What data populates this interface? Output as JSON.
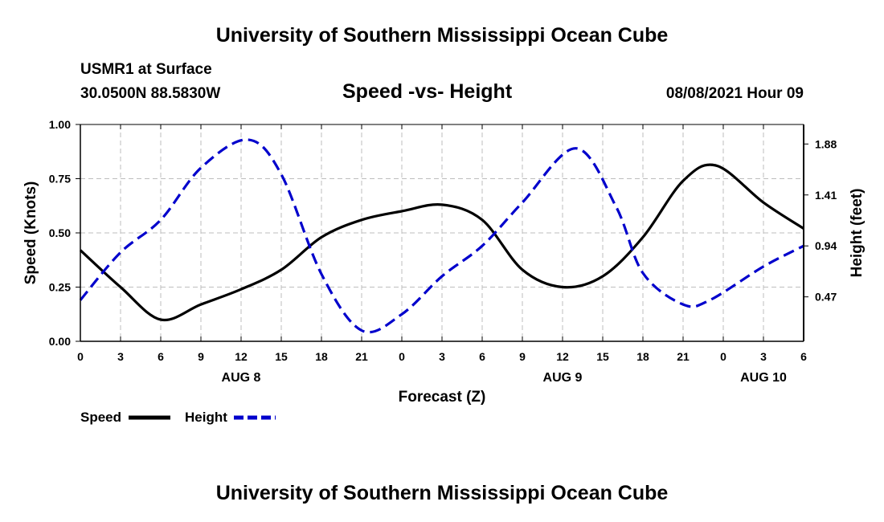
{
  "header": {
    "title": "University of Southern Mississippi Ocean Cube",
    "station": "USMR1 at Surface",
    "coords": "30.0500N  88.5830W",
    "chart_title": "Speed -vs- Height",
    "datetime": "08/08/2021 Hour 09"
  },
  "footer": {
    "title": "University of Southern Mississippi Ocean Cube"
  },
  "legend": {
    "speed_label": "Speed",
    "height_label": "Height"
  },
  "chart_data": {
    "type": "line",
    "title": "Speed -vs- Height",
    "xlabel": "Forecast (Z)",
    "ylabel": "Speed (Knots)",
    "y2label": "Height (feet)",
    "x_hours_range": [
      0,
      54
    ],
    "x_tick_labels": [
      "0",
      "3",
      "6",
      "9",
      "12",
      "15",
      "18",
      "21",
      "0",
      "3",
      "6",
      "9",
      "12",
      "15",
      "18",
      "21",
      "0",
      "3",
      "6"
    ],
    "date_labels": [
      {
        "label": "AUG 8",
        "hour": 12
      },
      {
        "label": "AUG 9",
        "hour": 36
      },
      {
        "label": "AUG 10",
        "hour": 51
      }
    ],
    "ylim": [
      0,
      1.0
    ],
    "y_ticks": [
      "0.00",
      "0.25",
      "0.50",
      "0.75",
      "1.00"
    ],
    "y2lim": [
      0.06,
      2.06
    ],
    "y2_ticks": [
      "0.47",
      "0.94",
      "1.41",
      "1.88"
    ],
    "grid": true,
    "legend_position": "bottom-left",
    "series": [
      {
        "name": "Speed",
        "axis": "left",
        "color": "#000000",
        "style": "solid",
        "x": [
          0,
          3,
          6,
          9,
          12,
          15,
          18,
          21,
          24,
          27,
          30,
          33,
          36,
          39,
          42,
          45,
          47.5,
          51,
          54
        ],
        "values": [
          0.42,
          0.25,
          0.1,
          0.17,
          0.24,
          0.33,
          0.48,
          0.56,
          0.6,
          0.63,
          0.56,
          0.33,
          0.25,
          0.3,
          0.48,
          0.74,
          0.81,
          0.64,
          0.52
        ]
      },
      {
        "name": "Height",
        "axis": "right",
        "color": "#0000cc",
        "style": "dashed",
        "x": [
          0,
          3,
          6,
          9,
          12.5,
          15,
          18,
          21,
          24,
          27,
          30,
          33,
          37,
          40,
          42,
          45,
          47,
          51,
          54
        ],
        "values": [
          0.44,
          0.88,
          1.18,
          1.66,
          1.92,
          1.6,
          0.68,
          0.16,
          0.31,
          0.66,
          0.94,
          1.34,
          1.84,
          1.3,
          0.69,
          0.4,
          0.44,
          0.75,
          0.94
        ]
      }
    ]
  }
}
